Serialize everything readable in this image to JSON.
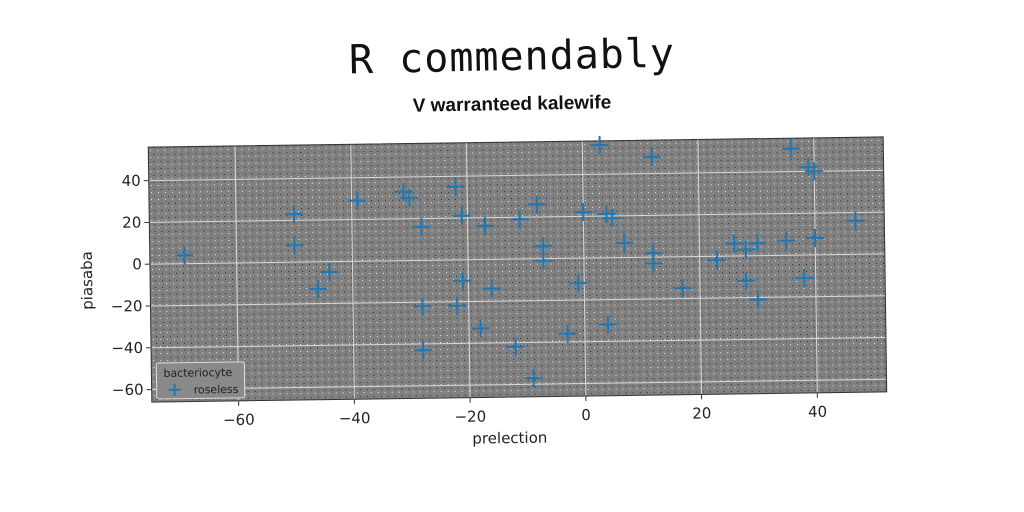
{
  "chart_data": {
    "type": "scatter",
    "suptitle": "R commendably",
    "title": "V warranteed kalewife",
    "xlabel": "prelection",
    "ylabel": "piasaba",
    "xlim": [
      -75,
      52
    ],
    "ylim": [
      -66,
      56
    ],
    "xticks": [
      -60,
      -40,
      -20,
      0,
      20,
      40
    ],
    "yticks": [
      -60,
      -40,
      -20,
      0,
      20,
      40
    ],
    "xtick_labels": [
      "−60",
      "−40",
      "−20",
      "0",
      "20",
      "40"
    ],
    "ytick_labels": [
      "−60",
      "−40",
      "−20",
      "0",
      "20",
      "40"
    ],
    "grid": true,
    "legend": {
      "title": "bacteriocyte",
      "position": "lower-left"
    },
    "marker": "plus",
    "colors": {
      "series": "#1f77b4",
      "axes_bg": "#808080",
      "grid": "#d8d8d8"
    },
    "series": [
      {
        "name": "roseless",
        "points": [
          [
            -69,
            4
          ],
          [
            -50,
            23
          ],
          [
            -50,
            8
          ],
          [
            -46,
            -13
          ],
          [
            -44,
            -5
          ],
          [
            -39,
            29
          ],
          [
            -31,
            33
          ],
          [
            -30,
            30
          ],
          [
            -28,
            16
          ],
          [
            -28,
            -22
          ],
          [
            -28,
            -43
          ],
          [
            -22,
            35
          ],
          [
            -21,
            21
          ],
          [
            -21,
            -10
          ],
          [
            -22,
            -22
          ],
          [
            -18,
            -33
          ],
          [
            -17,
            16
          ],
          [
            -16,
            -14
          ],
          [
            -11,
            19
          ],
          [
            -12,
            -42
          ],
          [
            -8,
            26
          ],
          [
            -7,
            6
          ],
          [
            -7,
            -1
          ],
          [
            -9,
            -57
          ],
          [
            -3,
            -36
          ],
          [
            -1,
            -12
          ],
          [
            0,
            22
          ],
          [
            3,
            54
          ],
          [
            4,
            21
          ],
          [
            5,
            19
          ],
          [
            4,
            -32
          ],
          [
            7,
            7
          ],
          [
            12,
            2
          ],
          [
            12,
            -3
          ],
          [
            12,
            48
          ],
          [
            17,
            -15
          ],
          [
            23,
            -2
          ],
          [
            26,
            6
          ],
          [
            28,
            3
          ],
          [
            28,
            -12
          ],
          [
            30,
            6
          ],
          [
            30,
            -21
          ],
          [
            35,
            7
          ],
          [
            36,
            51
          ],
          [
            38,
            -11
          ],
          [
            39,
            42
          ],
          [
            40,
            40
          ],
          [
            40,
            8
          ],
          [
            47,
            16
          ]
        ]
      }
    ]
  }
}
